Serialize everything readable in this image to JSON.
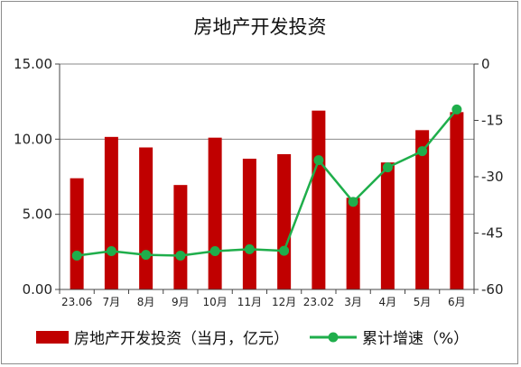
{
  "chart_data": {
    "type": "bar",
    "title": "房地产开发投资",
    "categories": [
      "23.06",
      "7月",
      "8月",
      "9月",
      "10月",
      "11月",
      "12月",
      "23.02",
      "3月",
      "4月",
      "5月",
      "6月"
    ],
    "series": [
      {
        "name": "房地产开发投资（当月，亿元）",
        "type": "bar",
        "axis": "left",
        "color": "#c00000",
        "values": [
          7.4,
          10.15,
          9.45,
          6.95,
          10.1,
          8.7,
          9.0,
          11.9,
          6.1,
          8.45,
          10.6,
          11.8
        ]
      },
      {
        "name": "累计增速（%）",
        "type": "line",
        "axis": "right",
        "color": "#1fae4b",
        "values": [
          -51.0,
          -49.8,
          -50.8,
          -51.0,
          -49.8,
          -49.3,
          -49.7,
          -25.6,
          -36.7,
          -27.5,
          -23.2,
          -12.1
        ]
      }
    ],
    "y_left": {
      "range": [
        0,
        15
      ],
      "ticks": [
        "0.00",
        "5.00",
        "10.00",
        "15.00"
      ]
    },
    "y_right": {
      "range": [
        -60,
        0
      ],
      "ticks": [
        "-60",
        "-45",
        "-30",
        "-15",
        "0"
      ]
    },
    "grid": true,
    "legend_position": "bottom"
  }
}
